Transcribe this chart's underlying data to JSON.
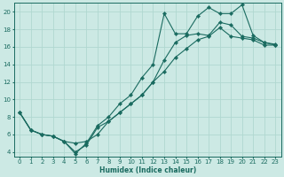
{
  "xlabel": "Humidex (Indice chaleur)",
  "xlim": [
    -0.5,
    23.5
  ],
  "ylim": [
    3.5,
    21
  ],
  "xticks": [
    0,
    1,
    2,
    3,
    4,
    5,
    6,
    7,
    8,
    9,
    10,
    11,
    12,
    13,
    14,
    15,
    16,
    17,
    18,
    19,
    20,
    21,
    22,
    23
  ],
  "yticks": [
    4,
    6,
    8,
    10,
    12,
    14,
    16,
    18,
    20
  ],
  "bg_color": "#cce9e4",
  "grid_color": "#b0d8d0",
  "line_color": "#1a6b60",
  "line1_x": [
    0,
    1,
    2,
    3,
    4,
    5,
    6,
    7,
    8,
    9,
    10,
    11,
    12,
    13,
    14,
    15,
    16,
    17,
    18,
    19,
    20,
    21,
    22,
    23
  ],
  "line1_y": [
    8.5,
    6.5,
    6.0,
    5.8,
    5.2,
    5.0,
    5.2,
    6.0,
    7.5,
    8.5,
    9.5,
    10.5,
    12.0,
    13.2,
    14.8,
    15.8,
    16.8,
    17.2,
    18.2,
    17.2,
    17.0,
    16.8,
    16.2,
    16.2
  ],
  "line2_x": [
    0,
    1,
    2,
    3,
    4,
    5,
    6,
    7,
    8,
    9,
    10,
    11,
    12,
    13,
    14,
    15,
    16,
    17,
    18,
    19,
    20,
    21,
    22,
    23
  ],
  "line2_y": [
    8.5,
    6.5,
    6.0,
    5.8,
    5.2,
    4.0,
    4.8,
    6.8,
    7.5,
    8.5,
    9.5,
    10.5,
    12.0,
    14.5,
    16.5,
    17.3,
    17.5,
    17.3,
    18.8,
    18.5,
    17.2,
    17.0,
    16.5,
    16.3
  ],
  "line3_x": [
    0,
    1,
    2,
    3,
    4,
    5,
    6,
    7,
    8,
    9,
    10,
    11,
    12,
    13,
    14,
    15,
    16,
    17,
    18,
    19,
    20,
    21,
    22,
    23
  ],
  "line3_y": [
    8.5,
    6.5,
    6.0,
    5.8,
    5.2,
    3.8,
    5.0,
    7.0,
    8.0,
    9.5,
    10.5,
    12.5,
    14.0,
    19.8,
    17.5,
    17.5,
    19.5,
    20.5,
    19.8,
    19.8,
    20.8,
    17.3,
    16.5,
    16.2
  ]
}
